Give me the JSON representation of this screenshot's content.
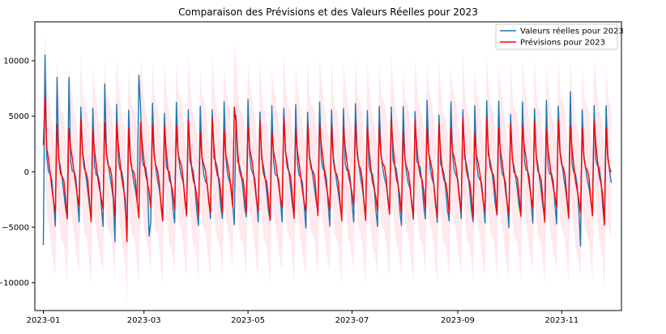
{
  "chart_data": {
    "type": "line",
    "title": "Comparaison des Prévisions et des Valeurs Réelles pour 2023",
    "xlabel": "",
    "ylabel": "",
    "x_range": [
      "2022-12-27",
      "2023-12-06"
    ],
    "ylim": [
      -12500,
      13500
    ],
    "x_ticks": [
      "2023-01",
      "2023-03",
      "2023-05",
      "2023-07",
      "2023-09",
      "2023-11"
    ],
    "y_ticks": [
      -10000,
      -5000,
      0,
      5000,
      10000
    ],
    "y_tick_labels": [
      "−10000",
      "−5000",
      "0",
      "5000",
      "10000"
    ],
    "grid": false,
    "legend_position": "top-right",
    "date_start": "2023-01-01",
    "date_end": "2023-11-30",
    "series": [
      {
        "name": "Valeurs réelles pour 2023",
        "color": "#1f77b4",
        "weekly_pattern": [
          -4400,
          5800,
          1200,
          300,
          -300,
          -1200,
          -2900
        ],
        "special_points": [
          {
            "x": "2023-01-01",
            "y": -6600
          },
          {
            "x": "2023-01-02",
            "y": 10500
          },
          {
            "x": "2023-01-09",
            "y": 8500
          },
          {
            "x": "2023-01-16",
            "y": 8500
          },
          {
            "x": "2023-02-06",
            "y": 7900
          },
          {
            "x": "2023-02-12",
            "y": -6300
          },
          {
            "x": "2023-02-26",
            "y": 8700
          },
          {
            "x": "2023-03-04",
            "y": -5800
          },
          {
            "x": "2023-09-18",
            "y": 6400
          },
          {
            "x": "2023-10-23",
            "y": 6400
          },
          {
            "x": "2023-11-06",
            "y": 7200
          },
          {
            "x": "2023-11-12",
            "y": -6700
          }
        ]
      },
      {
        "name": "Prévisions pour 2023",
        "color": "#ff0000",
        "weekly_pattern": [
          -3800,
          4200,
          1800,
          600,
          -200,
          -1000,
          -2400
        ],
        "special_points": [
          {
            "x": "2023-01-01",
            "y": 2400
          },
          {
            "x": "2023-01-02",
            "y": 6700
          },
          {
            "x": "2023-02-19",
            "y": -6300
          },
          {
            "x": "2023-04-23",
            "y": 5800
          },
          {
            "x": "2023-11-26",
            "y": -4800
          }
        ],
        "confidence_band": {
          "color": "#ffc0cb",
          "opacity": 0.35,
          "half_width": 5800
        }
      }
    ]
  }
}
